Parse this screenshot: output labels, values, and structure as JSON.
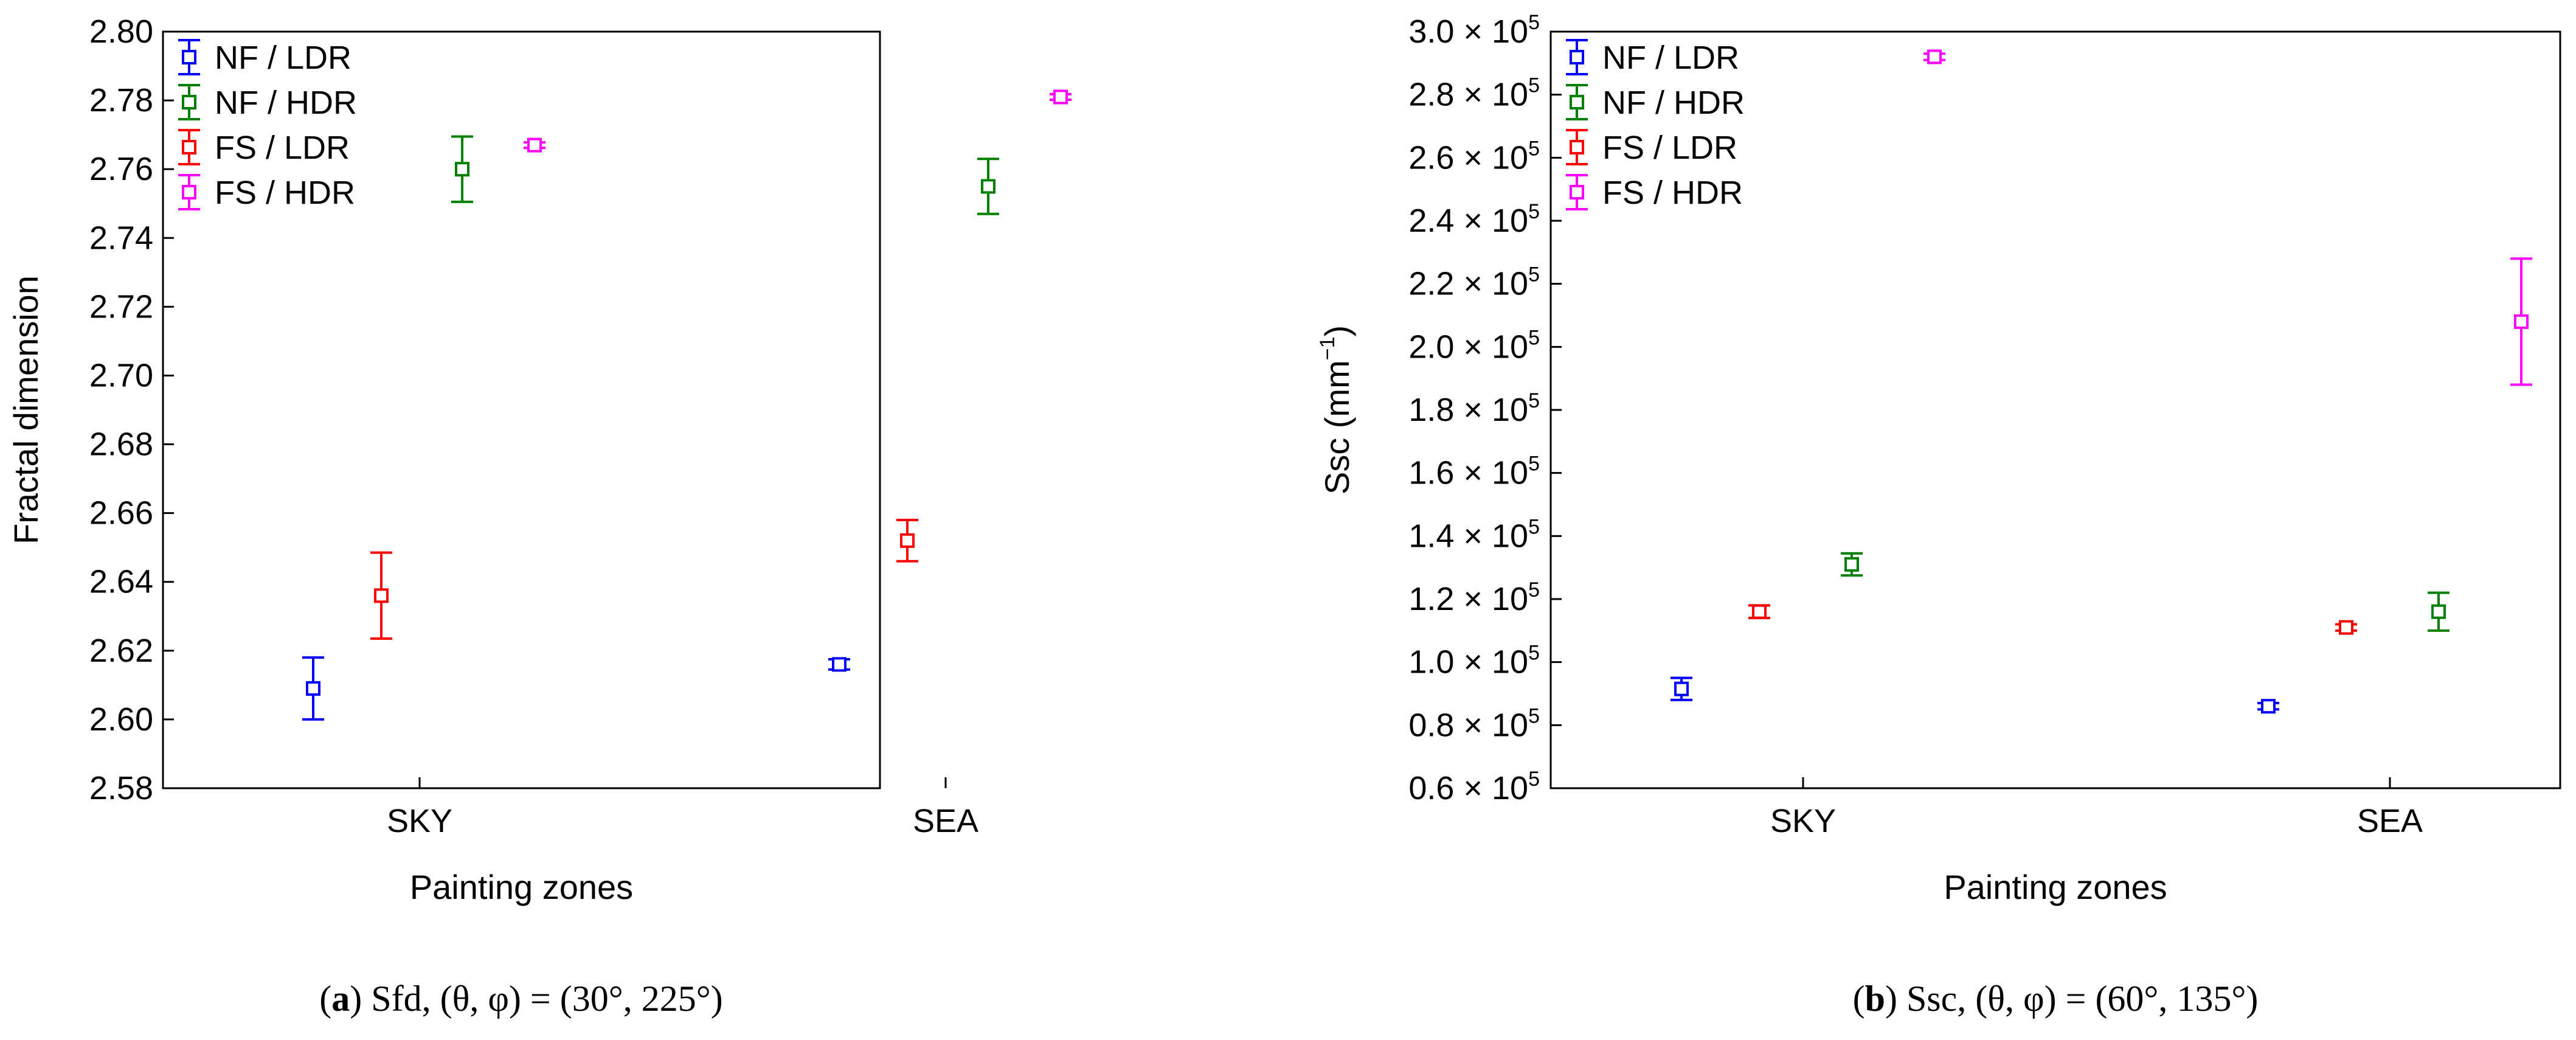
{
  "chart_data": [
    {
      "type": "scatter",
      "subtype": "errorbar",
      "caption": {
        "label": "a",
        "text": " Sfd, (θ, φ) = (30°, 225°)"
      },
      "xlabel": "Painting zones",
      "ylabel": "Fractal dimension",
      "categories": [
        "SKY",
        "SEA"
      ],
      "ylim": [
        2.58,
        2.8
      ],
      "yticks": [
        "2.58",
        "2.60",
        "2.62",
        "2.64",
        "2.66",
        "2.68",
        "2.70",
        "2.72",
        "2.74",
        "2.76",
        "2.78",
        "2.80"
      ],
      "series": [
        {
          "name": "NF / LDR",
          "color": "#0000ff",
          "values": [
            2.609,
            2.616
          ],
          "errors": [
            0.009,
            0.0015
          ]
        },
        {
          "name": "FS / LDR",
          "color": "#ff0000",
          "values": [
            2.636,
            2.652
          ],
          "errors": [
            0.0125,
            0.006
          ]
        },
        {
          "name": "NF / HDR",
          "color": "#008000",
          "values": [
            2.76,
            2.755
          ],
          "errors": [
            0.0095,
            0.008
          ]
        },
        {
          "name": "FS / HDR",
          "color": "#ff00ff",
          "values": [
            2.767,
            2.781
          ],
          "errors": [
            0.0008,
            0.0008
          ]
        }
      ],
      "legend": [
        "NF / LDR",
        "NF / HDR",
        "FS / LDR",
        "FS / HDR"
      ],
      "legend_position": "top-left"
    },
    {
      "type": "scatter",
      "subtype": "errorbar",
      "caption": {
        "label": "b",
        "text": " Ssc, (θ, φ) = (60°, 135°)"
      },
      "xlabel": "Painting zones",
      "ylabel": "Ssc (mm",
      "ylabel_sup": "−1",
      "ylabel_tail": ")",
      "categories": [
        "SKY",
        "SEA"
      ],
      "ylim": [
        60000,
        300000
      ],
      "ytick_mantissas": [
        "0.6",
        "0.8",
        "1.0",
        "1.2",
        "1.4",
        "1.6",
        "1.8",
        "2.0",
        "2.2",
        "2.4",
        "2.6",
        "2.8",
        "3.0"
      ],
      "ytick_suffix": " × 10",
      "ytick_exponent": "5",
      "series": [
        {
          "name": "NF / LDR",
          "color": "#0000ff",
          "values": [
            91500,
            86000
          ],
          "errors": [
            3500,
            1000
          ]
        },
        {
          "name": "FS / LDR",
          "color": "#ff0000",
          "values": [
            116000,
            111000
          ],
          "errors": [
            2000,
            1000
          ]
        },
        {
          "name": "NF / HDR",
          "color": "#008000",
          "values": [
            131000,
            116000
          ],
          "errors": [
            3500,
            6000
          ]
        },
        {
          "name": "FS / HDR",
          "color": "#ff00ff",
          "values": [
            292000,
            208000
          ],
          "errors": [
            1000,
            20000
          ]
        }
      ],
      "legend": [
        "NF / LDR",
        "NF / HDR",
        "FS / LDR",
        "FS / HDR"
      ],
      "legend_position": "top-left"
    }
  ]
}
